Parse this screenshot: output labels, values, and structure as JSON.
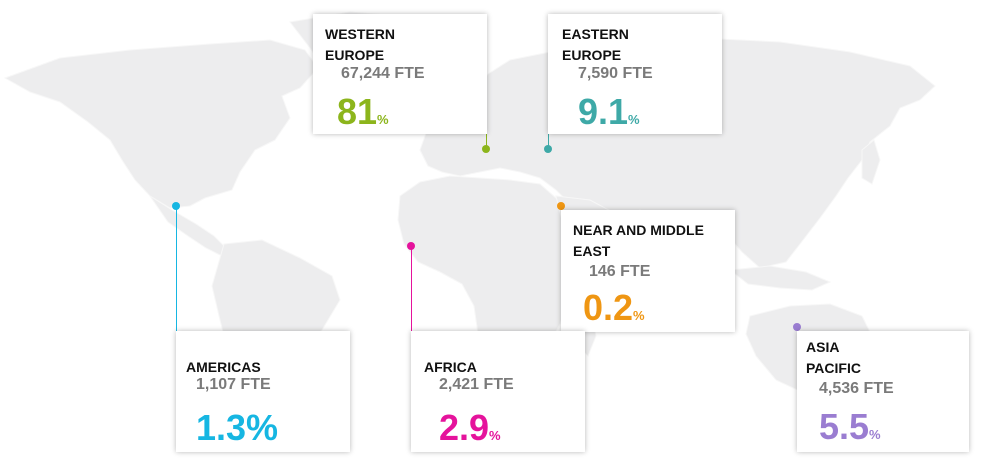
{
  "map": {
    "land_color": "#ededee"
  },
  "regions": [
    {
      "id": "western-europe",
      "name": "WESTERN\nEUROPE",
      "fte": "67,244 FTE",
      "value": "81",
      "unit": "%",
      "color": "#8cb51c"
    },
    {
      "id": "eastern-europe",
      "name": "EASTERN\nEUROPE",
      "fte": "7,590 FTE",
      "value": "9.1",
      "unit": "%",
      "color": "#3ea9a7"
    },
    {
      "id": "near-middle-east",
      "name": "NEAR AND MIDDLE\nEAST",
      "fte": "146 FTE",
      "value": "0.2",
      "unit": "%",
      "color": "#ef9613"
    },
    {
      "id": "americas",
      "name": "AMERICAS",
      "fte": "1,107 FTE",
      "value": "1.3",
      "unit": "%",
      "color": "#16b6e2"
    },
    {
      "id": "africa",
      "name": "AFRICA",
      "fte": "2,421 FTE",
      "value": "2.9",
      "unit": "%",
      "color": "#e5139c"
    },
    {
      "id": "asia-pacific",
      "name": "ASIA\nPACIFIC",
      "fte": "4,536 FTE",
      "value": "5.5",
      "unit": "%",
      "color": "#9a7dd1"
    }
  ]
}
